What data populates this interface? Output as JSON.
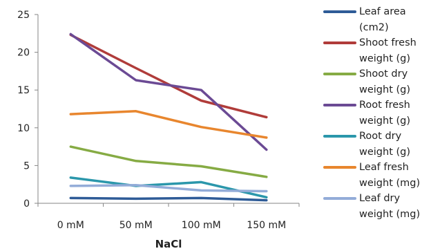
{
  "chart_data": {
    "type": "line",
    "title": "",
    "xlabel": "NaCl",
    "ylabel": "",
    "categories": [
      "0 mM",
      "50 mM",
      "100 mM",
      "150 mM"
    ],
    "ylim": [
      0,
      25
    ],
    "yticks": [
      "0",
      "5",
      "10",
      "15",
      "20",
      "25"
    ],
    "grid": false,
    "legend_position": "right",
    "series": [
      {
        "name": "Leaf area (cm2)",
        "color": "#2e5b97",
        "values": [
          0.7,
          0.6,
          0.7,
          0.4
        ]
      },
      {
        "name": "Shoot fresh weight (g)",
        "color": "#b03c3a",
        "values": [
          22.3,
          17.9,
          13.6,
          11.4
        ]
      },
      {
        "name": "Shoot dry weight (g)",
        "color": "#86ab44",
        "values": [
          7.5,
          5.6,
          4.9,
          3.5
        ]
      },
      {
        "name": "Root fresh weight (g)",
        "color": "#6b4a94",
        "values": [
          22.4,
          16.3,
          15.0,
          7.1
        ]
      },
      {
        "name": "Root dry weight (g)",
        "color": "#2b97ab",
        "values": [
          3.4,
          2.3,
          2.8,
          0.8
        ]
      },
      {
        "name": "Leaf fresh weight (mg)",
        "color": "#e8862e",
        "values": [
          11.8,
          12.2,
          10.1,
          8.7
        ]
      },
      {
        "name": "Leaf dry weight (mg)",
        "color": "#93acd8",
        "values": [
          2.3,
          2.4,
          1.7,
          1.6
        ]
      }
    ]
  }
}
